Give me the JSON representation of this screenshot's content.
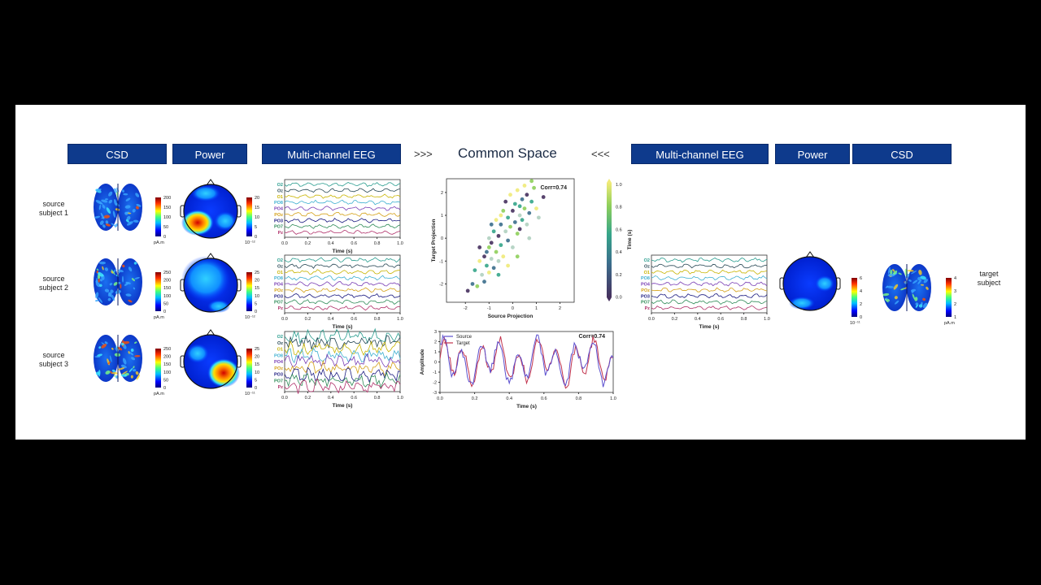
{
  "headers": {
    "left": [
      "CSD",
      "Power",
      "Multi-channel EEG"
    ],
    "right": [
      "Multi-channel EEG",
      "Power",
      "CSD"
    ],
    "arrow_left": ">>>",
    "arrow_right": "<<<",
    "title": "Common Space"
  },
  "rows": [
    {
      "line1": "source",
      "line2": "subject 1"
    },
    {
      "line1": "source",
      "line2": "subject 2"
    },
    {
      "line1": "source",
      "line2": "subject 3"
    }
  ],
  "target_label": {
    "line1": "target",
    "line2": "subject"
  },
  "csd_colorbars": [
    {
      "ticks": [
        "200",
        "150",
        "100",
        "50",
        "0"
      ],
      "unit": "pA.m"
    },
    {
      "ticks": [
        "250",
        "200",
        "150",
        "100",
        "50",
        "0"
      ],
      "unit": "pA.m"
    },
    {
      "ticks": [
        "250",
        "200",
        "150",
        "100",
        "50",
        "0"
      ],
      "unit": "pA.m"
    }
  ],
  "power_colorbars": [
    {
      "ticks": [
        "20",
        "15",
        "10",
        "5",
        "0"
      ],
      "exp": "10⁻¹²"
    },
    {
      "ticks": [
        "25",
        "20",
        "15",
        "10",
        "5",
        "0"
      ],
      "exp": "10⁻¹²"
    },
    {
      "ticks": [
        "25",
        "20",
        "15",
        "10",
        "5",
        "0"
      ],
      "exp": "10⁻¹¹"
    }
  ],
  "target_power_colorbar": {
    "ticks": [
      "6",
      "4",
      "2",
      "0"
    ],
    "exp": "10⁻¹¹"
  },
  "target_csd_colorbar": {
    "ticks": [
      "4",
      "3",
      "2",
      "1"
    ],
    "unit": "pA.m"
  },
  "eeg": {
    "channels": [
      "O2",
      "Oz",
      "O1",
      "PO8",
      "PO4",
      "POz",
      "PO3",
      "PO7",
      "Pz"
    ],
    "channel_colors": [
      "#2a9d8f",
      "#264653",
      "#c8b400",
      "#3fb0d0",
      "#7a3fb5",
      "#d4a017",
      "#1a1a80",
      "#2e8b57",
      "#b0306a"
    ],
    "xticks": [
      "0.0",
      "0.2",
      "0.4",
      "0.6",
      "0.8",
      "1.0"
    ],
    "xlabel": "Time (s)"
  },
  "chart_data": [
    {
      "type": "scatter",
      "xlabel": "Source Projection",
      "ylabel": "Target Projection",
      "annotation": "Corr=0.74",
      "xlim": [
        -2.8,
        2.6
      ],
      "ylim": [
        -2.8,
        2.6
      ],
      "xticks": [
        "-2",
        "-1",
        "0",
        "1",
        "2"
      ],
      "yticks": [
        "2",
        "1",
        "0",
        "-1",
        "-2"
      ],
      "colorbar": {
        "label": "Time (s)",
        "ticks": [
          "1.0",
          "0.8",
          "0.6",
          "0.4",
          "0.2",
          "0.0"
        ]
      },
      "points": [
        [
          -1.9,
          -2.3
        ],
        [
          -1.7,
          -2.0
        ],
        [
          -1.6,
          -1.4
        ],
        [
          -1.5,
          -2.1
        ],
        [
          -1.4,
          -1.0
        ],
        [
          -1.3,
          -1.6
        ],
        [
          -1.2,
          -0.8
        ],
        [
          -1.2,
          -1.9
        ],
        [
          -1.1,
          -1.2
        ],
        [
          -1.0,
          -0.4
        ],
        [
          -1.0,
          -1.5
        ],
        [
          -0.9,
          -0.9
        ],
        [
          -0.9,
          -0.2
        ],
        [
          -0.8,
          -1.3
        ],
        [
          -0.8,
          0.3
        ],
        [
          -0.7,
          -0.6
        ],
        [
          -0.7,
          0.8
        ],
        [
          -0.6,
          -1.0
        ],
        [
          -0.6,
          0.1
        ],
        [
          -0.5,
          0.6
        ],
        [
          -0.5,
          -0.3
        ],
        [
          -0.4,
          1.2
        ],
        [
          -0.4,
          -0.8
        ],
        [
          -0.3,
          0.3
        ],
        [
          -0.3,
          1.6
        ],
        [
          -0.2,
          -0.1
        ],
        [
          -0.2,
          0.9
        ],
        [
          -0.1,
          0.5
        ],
        [
          -0.1,
          1.9
        ],
        [
          0.0,
          -0.4
        ],
        [
          0.0,
          1.2
        ],
        [
          0.1,
          0.7
        ],
        [
          0.1,
          1.5
        ],
        [
          0.2,
          0.2
        ],
        [
          0.2,
          2.1
        ],
        [
          0.3,
          1.0
        ],
        [
          0.3,
          0.4
        ],
        [
          0.4,
          1.7
        ],
        [
          0.4,
          0.8
        ],
        [
          0.5,
          1.3
        ],
        [
          0.5,
          2.3
        ],
        [
          0.6,
          0.6
        ],
        [
          0.6,
          1.9
        ],
        [
          0.7,
          1.1
        ],
        [
          0.8,
          1.6
        ],
        [
          0.9,
          2.2
        ],
        [
          1.0,
          1.3
        ],
        [
          1.1,
          0.9
        ],
        [
          1.3,
          1.8
        ],
        [
          -1.1,
          -0.6
        ],
        [
          -0.6,
          -1.6
        ],
        [
          0.2,
          -0.8
        ],
        [
          -0.2,
          -1.2
        ],
        [
          0.7,
          0.0
        ],
        [
          -1.4,
          -0.4
        ],
        [
          -0.9,
          0.6
        ],
        [
          0.3,
          1.4
        ],
        [
          0.8,
          2.5
        ],
        [
          -0.5,
          1.0
        ],
        [
          -1.0,
          0.0
        ]
      ]
    },
    {
      "type": "line",
      "xlabel": "Time (s)",
      "ylabel": "Amplitude",
      "annotation": "Corr=0.74",
      "xlim": [
        0,
        1.0
      ],
      "ylim": [
        -3,
        3
      ],
      "xticks": [
        "0.0",
        "0.2",
        "0.4",
        "0.6",
        "0.8",
        "1.0"
      ],
      "yticks": [
        "3",
        "2",
        "1",
        "0",
        "-1",
        "-2",
        "-3"
      ],
      "series": [
        {
          "name": "Source",
          "color": "#5b4fcf"
        },
        {
          "name": "Target",
          "color": "#c2334d"
        }
      ]
    }
  ]
}
